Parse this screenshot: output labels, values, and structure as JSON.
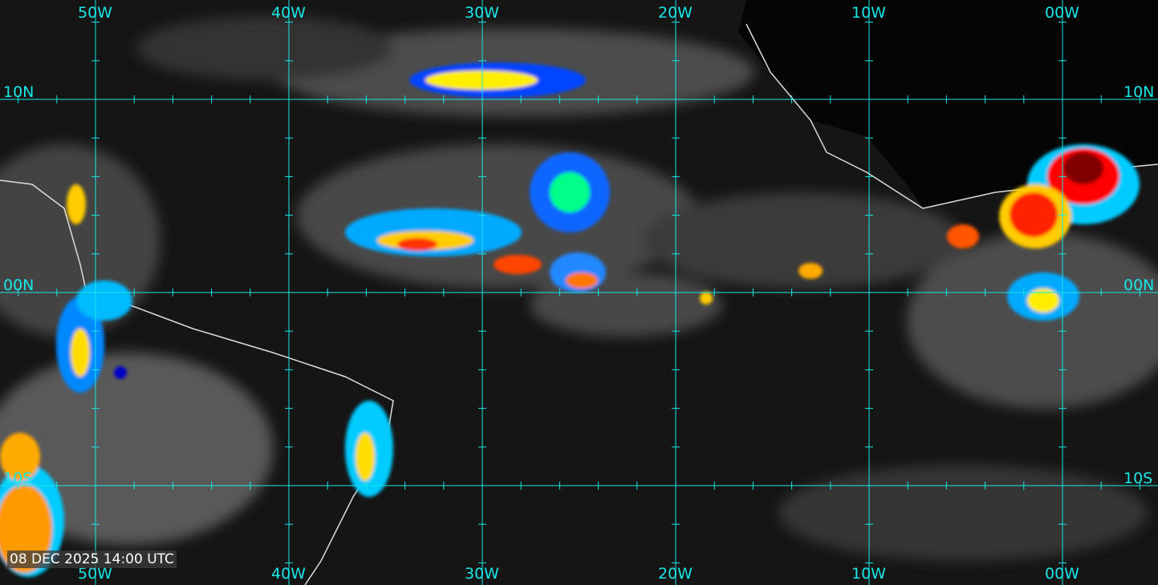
{
  "map": {
    "timestamp": "08 DEC 2025 14:00 UTC",
    "grid_color": "#19e6e6",
    "longitudes": [
      {
        "value": -50,
        "top_label": "50W",
        "bottom_label": "50W"
      },
      {
        "value": -40,
        "top_label": "40W",
        "bottom_label": "40W"
      },
      {
        "value": -30,
        "top_label": "30W",
        "bottom_label": "30W"
      },
      {
        "value": -20,
        "top_label": "20W",
        "bottom_label": "20W"
      },
      {
        "value": -10,
        "top_label": "10W",
        "bottom_label": "10W"
      },
      {
        "value": 0,
        "top_label": "00W",
        "bottom_label": "00W"
      }
    ],
    "latitudes": [
      {
        "value": 10,
        "label": "10N"
      },
      {
        "value": 0,
        "label": "00N"
      },
      {
        "value": -10,
        "label": "10S"
      }
    ],
    "colorscale": [
      "#0000c8",
      "#00c8ff",
      "#00ff80",
      "#ffff00",
      "#ff8000",
      "#ff0000",
      "#800000"
    ]
  }
}
